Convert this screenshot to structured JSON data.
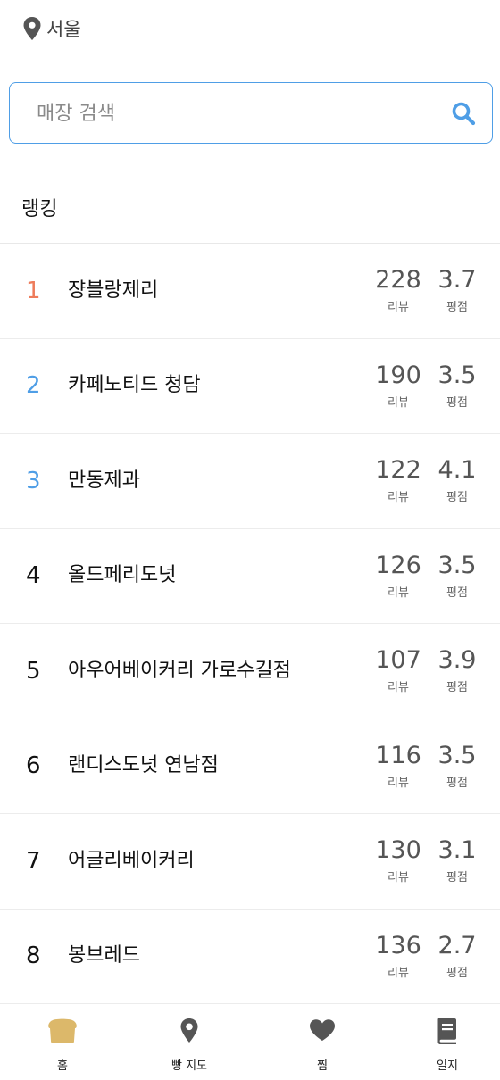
{
  "location": {
    "label": "서울"
  },
  "search": {
    "placeholder": "매장 검색"
  },
  "section": {
    "title": "랭킹"
  },
  "stat_labels": {
    "reviews": "리뷰",
    "rating": "평점"
  },
  "ranking": [
    {
      "rank": "1",
      "name": "쟝블랑제리",
      "reviews": "228",
      "rating": "3.7"
    },
    {
      "rank": "2",
      "name": "카페노티드 청담",
      "reviews": "190",
      "rating": "3.5"
    },
    {
      "rank": "3",
      "name": "만동제과",
      "reviews": "122",
      "rating": "4.1"
    },
    {
      "rank": "4",
      "name": "올드페리도넛",
      "reviews": "126",
      "rating": "3.5"
    },
    {
      "rank": "5",
      "name": "아우어베이커리 가로수길점",
      "reviews": "107",
      "rating": "3.9"
    },
    {
      "rank": "6",
      "name": "랜디스도넛 연남점",
      "reviews": "116",
      "rating": "3.5"
    },
    {
      "rank": "7",
      "name": "어글리베이커리",
      "reviews": "130",
      "rating": "3.1"
    },
    {
      "rank": "8",
      "name": "봉브레드",
      "reviews": "136",
      "rating": "2.7"
    }
  ],
  "colors": {
    "rank1": "#ee7c5b",
    "rank_top": "#4f9ee6",
    "accent": "#4f9ee6",
    "home_icon": "#dcb86a",
    "icon_gray": "#555555"
  },
  "tabs": [
    {
      "label": "홈",
      "icon": "bread-icon"
    },
    {
      "label": "빵 지도",
      "icon": "map-pin-icon"
    },
    {
      "label": "찜",
      "icon": "heart-icon"
    },
    {
      "label": "일지",
      "icon": "book-icon"
    }
  ]
}
